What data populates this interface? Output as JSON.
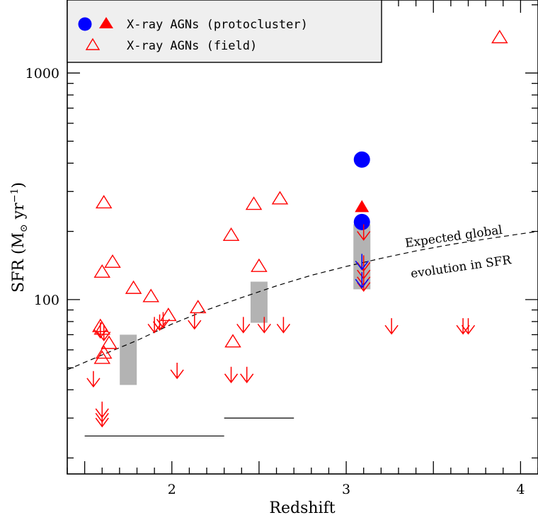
{
  "chart_data": {
    "type": "scatter",
    "xlabel": "Redshift",
    "ylabel_main": "SFR (M",
    "ylabel_sub": "⊙",
    "ylabel_mid": " yr",
    "ylabel_sup": "−1",
    "ylabel_end": ")",
    "xlim": [
      1.4,
      4.1
    ],
    "ylim": [
      17,
      2100
    ],
    "yscale": "log",
    "xticks": [
      2,
      3,
      4
    ],
    "xtick_labels": [
      "2",
      "3",
      "4"
    ],
    "yticks_major": [
      100,
      1000
    ],
    "ytick_labels": [
      "100",
      "1000"
    ],
    "legend": {
      "position": "top-left",
      "entries": [
        {
          "label": "X-ray AGNs (protocluster)",
          "markers": [
            "circle-filled-blue",
            "triangle-filled-red"
          ]
        },
        {
          "label": "X-ray AGNs (field)",
          "markers": [
            "triangle-open-red"
          ]
        }
      ]
    },
    "colors": {
      "red": "#ff0000",
      "blue": "#0000ff",
      "gray": "#b3b3b3",
      "black": "#000000"
    },
    "annotation": {
      "line1": "Expected global",
      "line2": "evolution in SFR"
    },
    "series": [
      {
        "name": "X-ray AGNs (protocluster)",
        "marker": "circle-filled",
        "color": "#0000ff",
        "points": [
          [
            3.09,
            415
          ],
          [
            3.09,
            220
          ]
        ]
      },
      {
        "name": "X-ray AGNs (protocluster)",
        "marker": "triangle-filled",
        "color": "#ff0000",
        "points": [
          [
            3.09,
            256
          ]
        ]
      },
      {
        "name": "X-ray AGNs (field)",
        "marker": "triangle-open",
        "color": "#ff0000",
        "points": [
          [
            1.61,
            267
          ],
          [
            1.6,
            132
          ],
          [
            1.66,
            146
          ],
          [
            1.78,
            112
          ],
          [
            1.88,
            103
          ],
          [
            1.98,
            85
          ],
          [
            2.15,
            92
          ],
          [
            1.59,
            76
          ],
          [
            1.6,
            74
          ],
          [
            1.64,
            64
          ],
          [
            1.61,
            58
          ],
          [
            1.6,
            55
          ],
          [
            2.34,
            192
          ],
          [
            2.47,
            263
          ],
          [
            2.62,
            278
          ],
          [
            2.5,
            140
          ],
          [
            2.35,
            65
          ],
          [
            3.88,
            1430
          ]
        ]
      },
      {
        "name": "upper limits (field)",
        "marker": "arrow-down",
        "color": "#ff0000",
        "points": [
          [
            1.55,
            45
          ],
          [
            1.6,
            30
          ],
          [
            1.6,
            31.5
          ],
          [
            1.6,
            33
          ],
          [
            1.59,
            74
          ],
          [
            1.61,
            72
          ],
          [
            1.9,
            78
          ],
          [
            1.93,
            80
          ],
          [
            1.95,
            82
          ],
          [
            2.13,
            81
          ],
          [
            2.03,
            49
          ],
          [
            2.34,
            47
          ],
          [
            2.43,
            47
          ],
          [
            2.41,
            78
          ],
          [
            2.53,
            78
          ],
          [
            2.64,
            78
          ],
          [
            3.26,
            77
          ],
          [
            3.67,
            77
          ],
          [
            3.7,
            77
          ]
        ]
      },
      {
        "name": "upper limits (protocluster)",
        "marker": "arrow-down",
        "color": "#ff0000",
        "points": [
          [
            3.1,
            200
          ],
          [
            3.1,
            146
          ],
          [
            3.1,
            135
          ],
          [
            3.1,
            126
          ],
          [
            3.1,
            119
          ]
        ]
      },
      {
        "name": "upper limits (protocluster)",
        "marker": "arrow-down",
        "color": "#0000ff",
        "points": [
          [
            3.09,
            148
          ],
          [
            3.09,
            123
          ]
        ]
      }
    ],
    "bands": [
      {
        "x": 1.75,
        "ymin": 42,
        "ymax": 70
      },
      {
        "x": 2.5,
        "ymin": 79,
        "ymax": 120
      },
      {
        "x": 3.09,
        "ymin": 111,
        "ymax": 215
      }
    ],
    "ranges": [
      {
        "xmin": 1.5,
        "xmax": 2.3,
        "y": 25
      },
      {
        "xmin": 2.3,
        "xmax": 2.7,
        "y": 30
      }
    ],
    "curve": [
      [
        1.4,
        49
      ],
      [
        1.6,
        57
      ],
      [
        1.8,
        66
      ],
      [
        2.0,
        78
      ],
      [
        2.2,
        90
      ],
      [
        2.4,
        102
      ],
      [
        2.6,
        115
      ],
      [
        2.8,
        128
      ],
      [
        3.0,
        140
      ],
      [
        3.2,
        152
      ],
      [
        3.4,
        164
      ],
      [
        3.6,
        175
      ],
      [
        3.8,
        185
      ],
      [
        4.0,
        195
      ],
      [
        4.1,
        200
      ]
    ]
  }
}
